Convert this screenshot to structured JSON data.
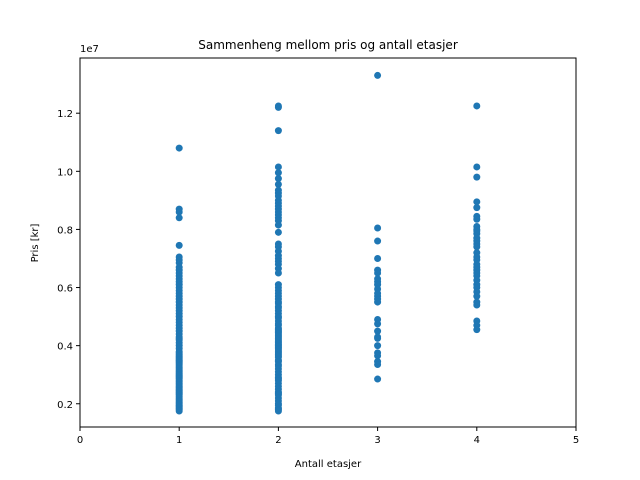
{
  "chart_data": {
    "type": "scatter",
    "title": "Sammenheng mellom pris og antall etasjer",
    "xlabel": "Antall etasjer",
    "ylabel": "Pris [kr]",
    "y_offset_label": "1e7",
    "xlim": [
      0,
      5
    ],
    "ylim": [
      1200000,
      13900000
    ],
    "x_ticks": [
      0,
      1,
      2,
      3,
      4,
      5
    ],
    "x_tick_labels": [
      "0",
      "1",
      "2",
      "3",
      "4",
      "5"
    ],
    "y_ticks": [
      2000000,
      4000000,
      6000000,
      8000000,
      10000000,
      12000000
    ],
    "y_tick_labels": [
      "0.2",
      "0.4",
      "0.6",
      "0.8",
      "1.0",
      "1.2"
    ],
    "grid": false,
    "marker_color": "#1f77b4",
    "series": [
      {
        "x": [
          1,
          1,
          1,
          1,
          1,
          1,
          1,
          1,
          1,
          1,
          1,
          1,
          1,
          1,
          1,
          1,
          1,
          1,
          1,
          1,
          1,
          1,
          1,
          1,
          1,
          1,
          1,
          1,
          1,
          1,
          1,
          1,
          1,
          1,
          1,
          1,
          1,
          1,
          1,
          1,
          1,
          1,
          1,
          1,
          1,
          1,
          1,
          1,
          1,
          1,
          1,
          1,
          1,
          1,
          1,
          1,
          1,
          1,
          1,
          1,
          1,
          1,
          1,
          1,
          1,
          1,
          1,
          1,
          1,
          1,
          1,
          1,
          1,
          1,
          1,
          1,
          1,
          1,
          1,
          1,
          2,
          2,
          2,
          2,
          2,
          2,
          2,
          2,
          2,
          2,
          2,
          2,
          2,
          2,
          2,
          2,
          2,
          2,
          2,
          2,
          2,
          2,
          2,
          2,
          2,
          2,
          2,
          2,
          2,
          2,
          2,
          2,
          2,
          2,
          2,
          2,
          2,
          2,
          2,
          2,
          2,
          2,
          2,
          2,
          2,
          2,
          2,
          2,
          2,
          2,
          2,
          2,
          2,
          2,
          2,
          2,
          2,
          2,
          2,
          2,
          2,
          2,
          2,
          2,
          2,
          2,
          2,
          2,
          2,
          2,
          2,
          2,
          2,
          2,
          2,
          2,
          2,
          2,
          2,
          2,
          2,
          2,
          2,
          2,
          2,
          2,
          2,
          2,
          2,
          2,
          3,
          3,
          3,
          3,
          3,
          3,
          3,
          3,
          3,
          3,
          3,
          3,
          3,
          3,
          3,
          3,
          3,
          3,
          3,
          3,
          3,
          3,
          3,
          3,
          3,
          4,
          4,
          4,
          4,
          4,
          4,
          4,
          4,
          4,
          4,
          4,
          4,
          4,
          4,
          4,
          4,
          4,
          4,
          4,
          4,
          4,
          4,
          4,
          4,
          4,
          4,
          4,
          4,
          4,
          4,
          4,
          4,
          4
        ],
        "y": [
          10800000,
          8700000,
          8600000,
          8400000,
          7450000,
          7050000,
          6950000,
          6850000,
          6700000,
          6600000,
          6500000,
          6400000,
          6300000,
          6200000,
          6100000,
          6000000,
          5900000,
          5800000,
          5700000,
          5600000,
          5500000,
          5400000,
          5300000,
          5200000,
          5100000,
          5000000,
          4900000,
          4800000,
          4700000,
          4600000,
          4500000,
          4400000,
          4300000,
          4200000,
          4100000,
          4000000,
          3900000,
          3800000,
          3700000,
          3650000,
          3600000,
          3550000,
          3500000,
          3450000,
          3400000,
          3350000,
          3300000,
          3250000,
          3200000,
          3150000,
          3100000,
          3050000,
          3000000,
          2950000,
          2900000,
          2850000,
          2800000,
          2750000,
          2700000,
          2650000,
          2600000,
          2550000,
          2500000,
          2450000,
          2400000,
          2350000,
          2300000,
          2250000,
          2200000,
          2150000,
          2100000,
          2050000,
          2000000,
          1950000,
          1900000,
          1850000,
          1800000,
          1750000,
          4250000,
          3750000,
          12250000,
          12200000,
          11400000,
          10150000,
          9950000,
          9750000,
          9550000,
          9350000,
          9250000,
          9150000,
          9000000,
          8900000,
          8800000,
          8700000,
          8600000,
          8500000,
          8400000,
          8300000,
          8150000,
          7900000,
          7500000,
          7400000,
          7250000,
          7100000,
          7000000,
          6900000,
          6800000,
          6650000,
          6500000,
          6100000,
          6000000,
          5900000,
          5800000,
          5700000,
          5600000,
          5500000,
          5450000,
          5350000,
          5200000,
          5100000,
          5000000,
          4950000,
          4850000,
          4750000,
          4700000,
          4600000,
          4550000,
          4500000,
          4450000,
          4400000,
          4350000,
          4300000,
          4250000,
          4200000,
          4150000,
          4100000,
          4050000,
          4000000,
          3950000,
          3900000,
          3850000,
          3800000,
          3750000,
          3700000,
          3650000,
          3600000,
          3500000,
          3450000,
          3350000,
          3300000,
          3200000,
          3100000,
          3000000,
          2900000,
          2850000,
          2800000,
          2700000,
          2600000,
          2500000,
          2400000,
          2350000,
          2300000,
          2200000,
          2100000,
          2000000,
          1950000,
          1850000,
          1800000,
          1750000,
          5300000,
          13300000,
          8050000,
          7600000,
          7000000,
          6600000,
          6500000,
          6300000,
          6200000,
          6100000,
          5950000,
          5700000,
          5600000,
          4900000,
          4750000,
          4500000,
          4300000,
          4250000,
          4000000,
          3750000,
          3650000,
          3450000,
          3350000,
          2850000,
          5800000,
          5500000,
          12250000,
          10150000,
          9800000,
          8950000,
          8750000,
          8450000,
          8350000,
          8100000,
          8000000,
          7850000,
          7700000,
          7600000,
          7500000,
          7400000,
          7200000,
          7050000,
          6950000,
          6800000,
          6700000,
          6600000,
          6400000,
          6250000,
          6100000,
          6000000,
          5850000,
          5700000,
          5500000,
          5400000,
          4850000,
          4700000,
          4550000,
          6500000,
          7950000
        ]
      }
    ]
  }
}
